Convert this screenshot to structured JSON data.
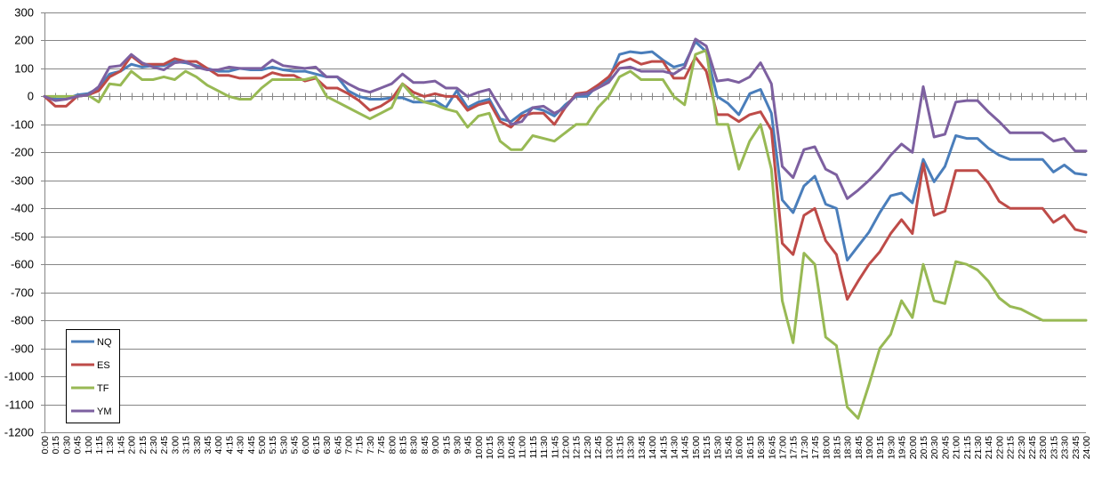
{
  "chart_data": {
    "type": "line",
    "title": "",
    "xlabel": "",
    "ylabel": "",
    "ylim": [
      -1200,
      300
    ],
    "yticks": [
      300,
      200,
      100,
      0,
      -100,
      -200,
      -300,
      -400,
      -500,
      -600,
      -700,
      -800,
      -900,
      -1000,
      -1100,
      -1200
    ],
    "grid": true,
    "legend_position": "bottom-left",
    "x": [
      "0:00",
      "0:15",
      "0:30",
      "0:45",
      "1:00",
      "1:15",
      "1:30",
      "1:45",
      "2:00",
      "2:15",
      "2:30",
      "2:45",
      "3:00",
      "3:15",
      "3:30",
      "3:45",
      "4:00",
      "4:15",
      "4:30",
      "4:45",
      "5:00",
      "5:15",
      "5:30",
      "5:45",
      "6:00",
      "6:15",
      "6:30",
      "6:45",
      "7:00",
      "7:15",
      "7:30",
      "7:45",
      "8:00",
      "8:15",
      "8:30",
      "8:45",
      "9:00",
      "9:15",
      "9:30",
      "9:45",
      "10:00",
      "10:15",
      "10:30",
      "10:45",
      "11:00",
      "11:15",
      "11:30",
      "11:45",
      "12:00",
      "12:15",
      "12:30",
      "12:45",
      "13:00",
      "13:15",
      "13:30",
      "13:45",
      "14:00",
      "14:15",
      "14:30",
      "14:45",
      "15:00",
      "15:15",
      "15:30",
      "15:45",
      "16:00",
      "16:15",
      "16:30",
      "16:45",
      "17:00",
      "17:15",
      "17:30",
      "17:45",
      "18:00",
      "18:15",
      "18:30",
      "18:45",
      "19:00",
      "19:15",
      "19:30",
      "19:45",
      "20:00",
      "20:15",
      "20:30",
      "20:45",
      "21:00",
      "21:15",
      "21:30",
      "21:45",
      "22:00",
      "22:15",
      "22:30",
      "22:45",
      "23:00",
      "23:15",
      "23:30",
      "23:45",
      "24:00"
    ],
    "series": [
      {
        "name": "NQ",
        "color": "#4A7EBB",
        "values": [
          0,
          -10,
          -10,
          5,
          10,
          30,
          80,
          90,
          115,
          105,
          110,
          110,
          125,
          120,
          110,
          100,
          90,
          90,
          100,
          95,
          95,
          105,
          95,
          90,
          90,
          80,
          70,
          70,
          20,
          0,
          -10,
          -10,
          -5,
          -5,
          -20,
          -20,
          -15,
          -40,
          20,
          -40,
          -20,
          -10,
          -80,
          -90,
          -60,
          -40,
          -50,
          -70,
          -30,
          0,
          0,
          40,
          60,
          150,
          160,
          155,
          160,
          130,
          105,
          115,
          195,
          160,
          0,
          -25,
          -65,
          10,
          25,
          -60,
          -370,
          -415,
          -320,
          -285,
          -385,
          -400,
          -585,
          -535,
          -485,
          -415,
          -355,
          -345,
          -380,
          -225,
          -305,
          -250,
          -140,
          -150,
          -150,
          -185,
          -210,
          -225,
          -225,
          -225,
          -225,
          -270,
          -245,
          -275,
          -280
        ]
      },
      {
        "name": "ES",
        "color": "#BE4B48",
        "values": [
          0,
          -35,
          -35,
          0,
          5,
          20,
          70,
          90,
          145,
          115,
          115,
          115,
          135,
          125,
          125,
          100,
          75,
          75,
          65,
          65,
          65,
          85,
          75,
          75,
          55,
          65,
          30,
          30,
          10,
          -15,
          -50,
          -35,
          -10,
          45,
          15,
          0,
          10,
          0,
          0,
          -50,
          -30,
          -20,
          -90,
          -110,
          -70,
          -60,
          -60,
          -100,
          -40,
          10,
          15,
          40,
          70,
          120,
          135,
          115,
          125,
          125,
          65,
          65,
          140,
          90,
          -65,
          -65,
          -90,
          -65,
          -55,
          -120,
          -525,
          -565,
          -425,
          -400,
          -515,
          -565,
          -725,
          -660,
          -600,
          -555,
          -490,
          -440,
          -490,
          -240,
          -425,
          -410,
          -265,
          -265,
          -265,
          -310,
          -375,
          -400,
          -400,
          -400,
          -400,
          -450,
          -425,
          -475,
          -485
        ]
      },
      {
        "name": "TF",
        "color": "#98B954",
        "values": [
          0,
          0,
          0,
          0,
          5,
          -20,
          45,
          40,
          90,
          60,
          60,
          70,
          60,
          90,
          70,
          40,
          20,
          0,
          -10,
          -10,
          30,
          60,
          60,
          60,
          60,
          70,
          0,
          -20,
          -40,
          -60,
          -80,
          -60,
          -40,
          45,
          0,
          -20,
          -30,
          -45,
          -55,
          -110,
          -70,
          -60,
          -160,
          -190,
          -190,
          -140,
          -150,
          -160,
          -130,
          -100,
          -100,
          -40,
          0,
          70,
          90,
          60,
          60,
          60,
          0,
          -30,
          150,
          165,
          -100,
          -100,
          -260,
          -160,
          -100,
          -260,
          -730,
          -880,
          -560,
          -600,
          -860,
          -890,
          -1110,
          -1150,
          -1030,
          -900,
          -850,
          -730,
          -790,
          -600,
          -730,
          -740,
          -590,
          -600,
          -620,
          -660,
          -720,
          -750,
          -760,
          -780,
          -800,
          -800,
          -800,
          -800,
          -800
        ]
      },
      {
        "name": "YM",
        "color": "#7D60A0",
        "values": [
          0,
          -15,
          -10,
          0,
          5,
          35,
          105,
          110,
          150,
          120,
          105,
          95,
          120,
          125,
          105,
          95,
          95,
          105,
          100,
          100,
          100,
          130,
          110,
          105,
          100,
          105,
          70,
          70,
          45,
          25,
          15,
          30,
          45,
          80,
          50,
          50,
          55,
          30,
          30,
          0,
          15,
          25,
          -40,
          -100,
          -90,
          -40,
          -35,
          -60,
          -40,
          5,
          10,
          30,
          50,
          100,
          105,
          90,
          90,
          90,
          80,
          105,
          205,
          180,
          55,
          60,
          50,
          70,
          120,
          45,
          -250,
          -290,
          -190,
          -180,
          -260,
          -280,
          -365,
          -335,
          -300,
          -260,
          -210,
          -170,
          -200,
          35,
          -145,
          -135,
          -20,
          -15,
          -15,
          -55,
          -90,
          -130,
          -130,
          -130,
          -130,
          -160,
          -150,
          -195,
          -195
        ]
      }
    ]
  }
}
